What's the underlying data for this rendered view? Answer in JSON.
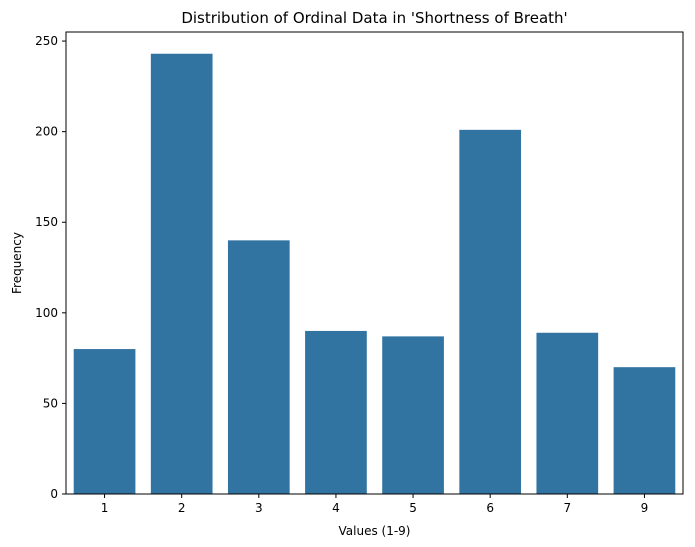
{
  "chart_data": {
    "type": "bar",
    "title": "Distribution of Ordinal Data in 'Shortness of Breath'",
    "xlabel": "Values (1-9)",
    "ylabel": "Frequency",
    "categories": [
      "1",
      "2",
      "3",
      "4",
      "5",
      "6",
      "7",
      "9"
    ],
    "values": [
      80,
      243,
      140,
      90,
      87,
      201,
      89,
      70
    ],
    "ylim": [
      0,
      255
    ],
    "yticks": [
      0,
      50,
      100,
      150,
      200,
      250
    ],
    "grid": false,
    "bar_color": "#3274a1"
  }
}
